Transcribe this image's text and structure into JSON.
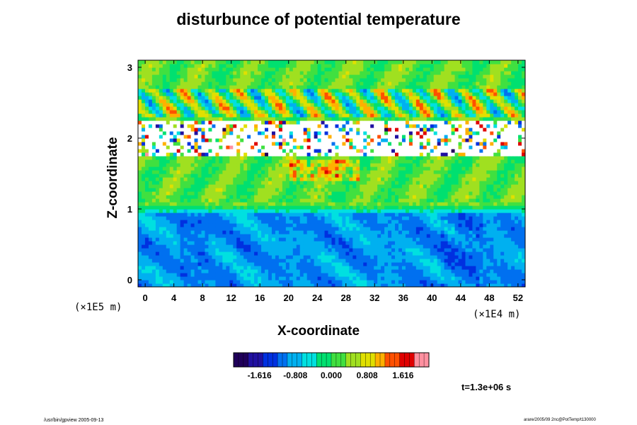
{
  "chart_data": {
    "type": "heatmap",
    "title": "disturbunce of potential temperature",
    "xlabel": "X-coordinate",
    "ylabel": "Z-coordinate",
    "x_scale": "(×1E4 m)",
    "y_scale": "(×1E5 m)",
    "xlim": [
      -1,
      53
    ],
    "ylim": [
      -0.1,
      3.1
    ],
    "x_ticks": [
      "0",
      "4",
      "8",
      "12",
      "16",
      "20",
      "24",
      "28",
      "32",
      "36",
      "40",
      "44",
      "48",
      "52"
    ],
    "y_ticks": [
      "0",
      "1",
      "2",
      "3"
    ],
    "colorbar": {
      "ticks": [
        "-1.616",
        "-0.808",
        "0.000",
        "0.808",
        "1.616"
      ],
      "range": [
        -2.2,
        2.2
      ],
      "colors": [
        "#20005a",
        "#2010a0",
        "#0030e0",
        "#0070f0",
        "#00b0f0",
        "#00e0e0",
        "#00e070",
        "#40e040",
        "#a0e020",
        "#e0e000",
        "#ffb000",
        "#ff5000",
        "#e00000",
        "#ff90a0"
      ]
    },
    "field_description_values": {
      "lower_layer_z": [
        0,
        0.95
      ],
      "lower_layer_value": -0.9,
      "upper_layer_z": [
        1.1,
        3.1
      ],
      "upper_layer_value": 0.2,
      "saturated_band_z": [
        1.75,
        2.25
      ]
    }
  },
  "annotations": {
    "time": "t=1.3e+06 s",
    "footer_left": "/usr/bin/gpview 2005-09-13",
    "footer_right": "arare/2005/09 2nc@PotTemp/t130000"
  }
}
